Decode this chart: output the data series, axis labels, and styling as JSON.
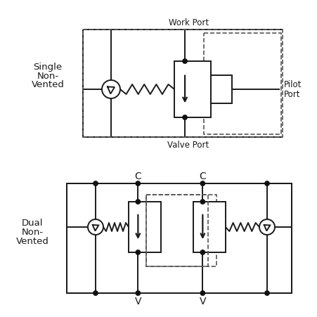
{
  "bg_color": "#ffffff",
  "line_color": "#1a1a1a",
  "dash_color": "#555555",
  "dot_color": "#111111",
  "font_color": "#1a1a1a",
  "fig_w": 4.52,
  "fig_h": 4.52,
  "dpi": 100,
  "label_single": [
    "Single",
    "Non-",
    "Vented"
  ],
  "label_dual": [
    "Dual",
    "Non-",
    "Vented"
  ],
  "label_work_port": "Work Port",
  "label_valve_port": "Valve Port",
  "label_pilot_port": [
    "Pilot",
    "Port"
  ],
  "label_C1": "C",
  "label_C2": "C",
  "label_V1": "V",
  "label_V2": "V"
}
